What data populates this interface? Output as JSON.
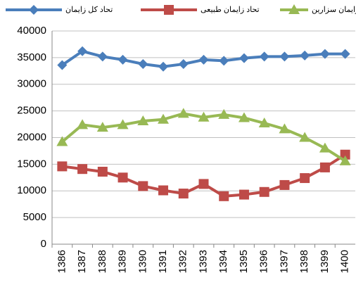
{
  "chart_data": {
    "type": "line",
    "categories": [
      "1386",
      "1387",
      "1388",
      "1389",
      "1390",
      "1391",
      "1392",
      "1393",
      "1394",
      "1395",
      "1396",
      "1397",
      "1398",
      "1399",
      "1400"
    ],
    "series": [
      {
        "name": "تحاد کل زایمان",
        "color": "#4a7ebb",
        "marker": "diamond",
        "values": [
          33600,
          36200,
          35200,
          34600,
          33800,
          33300,
          33800,
          34600,
          34400,
          34900,
          35200,
          35200,
          35400,
          35700,
          35700
        ]
      },
      {
        "name": "تحاد زایمان طبیعی",
        "color": "#be4b48",
        "marker": "square",
        "values": [
          14600,
          14100,
          13600,
          12500,
          10900,
          10100,
          9500,
          11300,
          9000,
          9300,
          9800,
          11100,
          12400,
          14400,
          16800
        ]
      },
      {
        "name": "تحا زایمان سزارین",
        "color": "#98b954",
        "marker": "triangle",
        "values": [
          19200,
          22400,
          21900,
          22400,
          23100,
          23400,
          24500,
          23800,
          24300,
          23700,
          22700,
          21600,
          20000,
          18000,
          15600
        ]
      }
    ],
    "ylim": [
      0,
      40000
    ],
    "yticks": [
      0,
      5000,
      10000,
      15000,
      20000,
      25000,
      30000,
      35000,
      40000
    ],
    "grid": true
  }
}
